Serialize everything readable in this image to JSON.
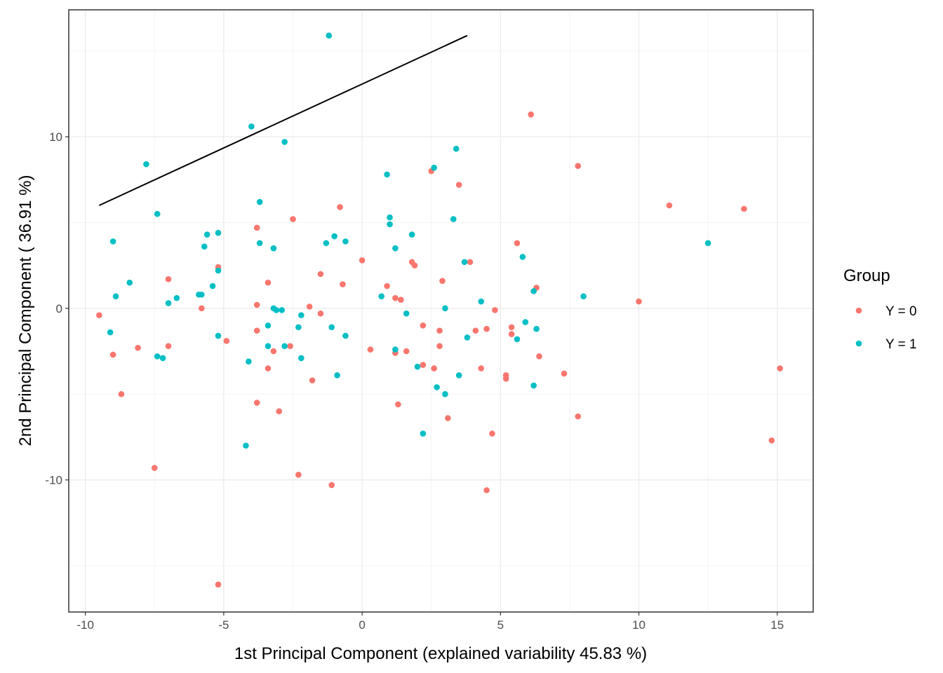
{
  "chart_data": {
    "type": "scatter",
    "xlabel": "1st Principal Component (explained variability 45.83 %)",
    "ylabel": "2nd Principal Component ( 36.91 %)",
    "xlim": [
      -10.6,
      16.3
    ],
    "ylim": [
      -17.7,
      17.4
    ],
    "x_ticks": [
      -10,
      -5,
      0,
      5,
      10,
      15
    ],
    "x_tick_labels": [
      "-10",
      "-5",
      "0",
      "5",
      "10",
      "15"
    ],
    "y_ticks": [
      -10,
      0,
      10
    ],
    "y_tick_labels": [
      "-10",
      "0",
      "10"
    ],
    "grid": true,
    "legend": {
      "title": "Group",
      "position": "right",
      "entries": [
        {
          "label": "Y = 0",
          "color": "#F8766D"
        },
        {
          "label": "Y = 1",
          "color": "#00BFC4"
        }
      ]
    },
    "line": {
      "x": [
        -9.5,
        3.8
      ],
      "y": [
        6.0,
        15.9
      ],
      "color": "#000000"
    },
    "series": [
      {
        "name": "Y = 0",
        "color": "#F8766D",
        "points": [
          [
            -9.5,
            -0.4
          ],
          [
            -9.0,
            -2.7
          ],
          [
            -8.7,
            -5.0
          ],
          [
            -8.1,
            -2.3
          ],
          [
            -7.5,
            -9.3
          ],
          [
            -7.0,
            1.7
          ],
          [
            -7.0,
            -2.2
          ],
          [
            -5.8,
            0.0
          ],
          [
            -5.2,
            2.4
          ],
          [
            -5.2,
            -16.1
          ],
          [
            -4.9,
            -1.9
          ],
          [
            -3.8,
            4.7
          ],
          [
            -3.8,
            0.2
          ],
          [
            -3.8,
            -1.3
          ],
          [
            -3.8,
            -5.5
          ],
          [
            -3.4,
            1.5
          ],
          [
            -3.4,
            -3.5
          ],
          [
            -3.2,
            -2.5
          ],
          [
            -3.0,
            -6.0
          ],
          [
            -2.6,
            -2.2
          ],
          [
            -2.5,
            5.2
          ],
          [
            -2.3,
            -9.7
          ],
          [
            -1.9,
            0.1
          ],
          [
            -1.8,
            -4.2
          ],
          [
            -1.5,
            -0.3
          ],
          [
            -1.5,
            2.0
          ],
          [
            -1.1,
            -10.3
          ],
          [
            -0.8,
            5.9
          ],
          [
            -0.7,
            1.4
          ],
          [
            0.0,
            2.8
          ],
          [
            0.3,
            -2.4
          ],
          [
            0.9,
            1.3
          ],
          [
            1.2,
            0.6
          ],
          [
            1.2,
            -2.6
          ],
          [
            1.3,
            -5.6
          ],
          [
            1.4,
            0.5
          ],
          [
            1.6,
            -2.5
          ],
          [
            1.8,
            2.7
          ],
          [
            1.9,
            2.5
          ],
          [
            2.2,
            -1.0
          ],
          [
            2.2,
            -3.3
          ],
          [
            2.5,
            8.0
          ],
          [
            2.6,
            -3.5
          ],
          [
            2.8,
            -1.3
          ],
          [
            2.8,
            -2.2
          ],
          [
            2.9,
            1.6
          ],
          [
            3.1,
            -6.4
          ],
          [
            3.5,
            7.2
          ],
          [
            3.9,
            2.7
          ],
          [
            4.1,
            -1.3
          ],
          [
            4.3,
            -3.5
          ],
          [
            4.5,
            -1.2
          ],
          [
            4.5,
            -10.6
          ],
          [
            4.7,
            -7.3
          ],
          [
            4.8,
            -0.1
          ],
          [
            5.2,
            -4.1
          ],
          [
            5.2,
            -3.9
          ],
          [
            5.4,
            -1.1
          ],
          [
            5.4,
            -1.5
          ],
          [
            5.6,
            3.8
          ],
          [
            6.1,
            11.3
          ],
          [
            6.3,
            1.2
          ],
          [
            6.4,
            -2.8
          ],
          [
            7.3,
            -3.8
          ],
          [
            7.8,
            -6.3
          ],
          [
            7.8,
            8.3
          ],
          [
            10.0,
            0.4
          ],
          [
            11.1,
            6.0
          ],
          [
            13.8,
            5.8
          ],
          [
            14.8,
            -7.7
          ],
          [
            15.1,
            -3.5
          ]
        ]
      },
      {
        "name": "Y = 1",
        "color": "#00BFC4",
        "points": [
          [
            -9.0,
            3.9
          ],
          [
            -9.1,
            -1.4
          ],
          [
            -8.9,
            0.7
          ],
          [
            -8.4,
            1.5
          ],
          [
            -7.8,
            8.4
          ],
          [
            -7.4,
            5.5
          ],
          [
            -7.4,
            -2.8
          ],
          [
            -7.2,
            -2.9
          ],
          [
            -7.0,
            0.3
          ],
          [
            -6.7,
            0.6
          ],
          [
            -5.9,
            0.8
          ],
          [
            -5.8,
            0.8
          ],
          [
            -5.7,
            3.6
          ],
          [
            -5.6,
            4.3
          ],
          [
            -5.4,
            1.3
          ],
          [
            -5.2,
            4.4
          ],
          [
            -5.2,
            2.2
          ],
          [
            -5.2,
            -1.6
          ],
          [
            -4.2,
            -8.0
          ],
          [
            -4.1,
            -3.1
          ],
          [
            -4.0,
            10.6
          ],
          [
            -3.7,
            6.2
          ],
          [
            -3.7,
            3.8
          ],
          [
            -3.4,
            -1.0
          ],
          [
            -3.4,
            -2.2
          ],
          [
            -3.2,
            0.0
          ],
          [
            -3.2,
            3.5
          ],
          [
            -3.1,
            -0.1
          ],
          [
            -2.9,
            -0.1
          ],
          [
            -2.8,
            9.7
          ],
          [
            -2.8,
            -2.2
          ],
          [
            -2.3,
            -1.1
          ],
          [
            -2.2,
            -2.9
          ],
          [
            -2.2,
            -0.4
          ],
          [
            -1.3,
            3.8
          ],
          [
            -1.2,
            15.9
          ],
          [
            -1.1,
            -1.1
          ],
          [
            -1.0,
            4.2
          ],
          [
            -0.9,
            -3.9
          ],
          [
            -0.6,
            3.9
          ],
          [
            -0.6,
            -1.6
          ],
          [
            0.7,
            0.7
          ],
          [
            0.9,
            7.8
          ],
          [
            1.0,
            5.3
          ],
          [
            1.0,
            4.9
          ],
          [
            1.2,
            3.5
          ],
          [
            1.2,
            -2.4
          ],
          [
            1.6,
            -0.3
          ],
          [
            1.8,
            4.3
          ],
          [
            2.0,
            -3.4
          ],
          [
            2.2,
            -7.3
          ],
          [
            2.6,
            8.2
          ],
          [
            2.7,
            -4.6
          ],
          [
            3.0,
            -5.0
          ],
          [
            3.0,
            0.0
          ],
          [
            3.3,
            5.2
          ],
          [
            3.4,
            9.3
          ],
          [
            3.5,
            -3.9
          ],
          [
            3.7,
            2.7
          ],
          [
            3.8,
            -1.7
          ],
          [
            4.3,
            0.4
          ],
          [
            5.6,
            -1.8
          ],
          [
            5.8,
            3.0
          ],
          [
            5.9,
            -0.8
          ],
          [
            6.2,
            1.0
          ],
          [
            6.2,
            -4.5
          ],
          [
            6.3,
            -1.2
          ],
          [
            8.0,
            0.7
          ],
          [
            12.5,
            3.8
          ]
        ]
      }
    ]
  }
}
